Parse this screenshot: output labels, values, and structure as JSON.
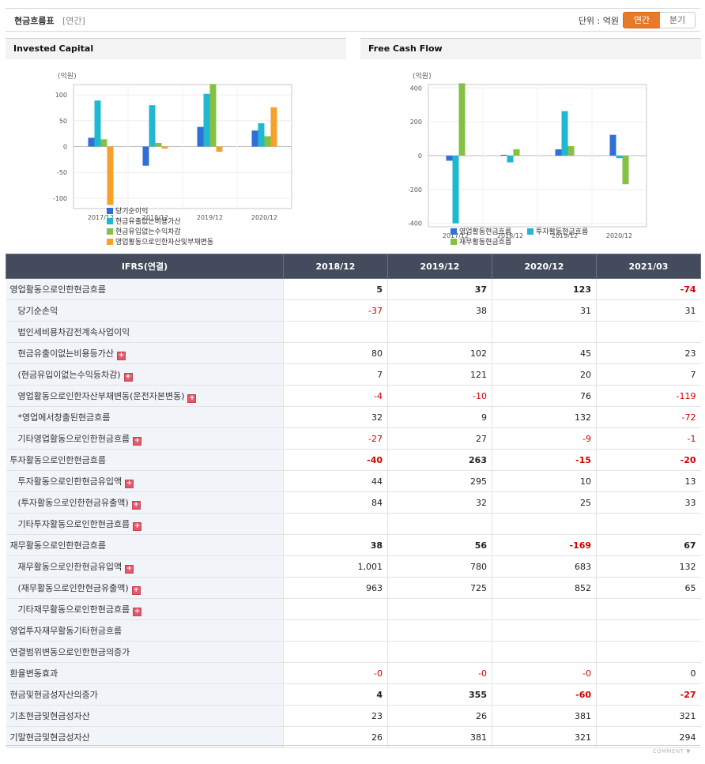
{
  "header": {
    "title": "현금흐름표",
    "period_tag": "[연간]",
    "unit_label": "단위 : 억원",
    "tab_annual": "연간",
    "tab_quarter": "분기"
  },
  "charts": {
    "invested_capital_title": "Invested Capital",
    "free_cash_flow_title": "Free Cash Flow"
  },
  "chart_data": [
    {
      "type": "bar",
      "title": "Invested Capital",
      "ylabel": "(억원)",
      "categories": [
        "2017/12",
        "2018/12",
        "2019/12",
        "2020/12"
      ],
      "ylim": [
        -120,
        120
      ],
      "yticks": [
        100,
        50,
        0,
        -50,
        -100
      ],
      "legend_position": "bottom",
      "series": [
        {
          "name": "당기순이익",
          "color": "#2f6fd6",
          "values": [
            17,
            -37,
            38,
            31
          ]
        },
        {
          "name": "현금유출없는비용가산",
          "color": "#1fb8d0",
          "values": [
            89,
            80,
            102,
            45
          ]
        },
        {
          "name": "현금유입없는수익차감",
          "color": "#84c143",
          "values": [
            14,
            7,
            121,
            20
          ]
        },
        {
          "name": "영업활동으로인한자산및부채변동",
          "color": "#f7a02a",
          "values": [
            -113,
            -4,
            -10,
            76
          ]
        }
      ]
    },
    {
      "type": "bar",
      "title": "Free Cash Flow",
      "ylabel": "(억원)",
      "categories": [
        "2017/12",
        "2018/12",
        "2019/12",
        "2020/12"
      ],
      "ylim": [
        -420,
        420
      ],
      "yticks": [
        400,
        200,
        0,
        -200,
        -400
      ],
      "legend_position": "bottom",
      "series": [
        {
          "name": "영업활동현금흐름",
          "color": "#2f6fd6",
          "values": [
            -30,
            5,
            37,
            123
          ]
        },
        {
          "name": "투자활동현금흐름",
          "color": "#1fb8d0",
          "values": [
            -400,
            -40,
            263,
            -15
          ]
        },
        {
          "name": "재무활동현금흐름",
          "color": "#84c143",
          "values": [
            427,
            38,
            56,
            -169
          ]
        }
      ]
    }
  ],
  "table": {
    "header": [
      "IFRS(연결)",
      "2018/12",
      "2019/12",
      "2020/12",
      "2021/03"
    ],
    "rows": [
      {
        "label": "영업활동으로인한현금흐름",
        "kind": "main",
        "plus": false,
        "values": [
          "5",
          "37",
          "123",
          "-74"
        ]
      },
      {
        "label": "당기순손익",
        "kind": "sub",
        "plus": false,
        "values": [
          "-37",
          "38",
          "31",
          "31"
        ]
      },
      {
        "label": "법인세비용차감전계속사업이익",
        "kind": "sub",
        "plus": false,
        "values": [
          "",
          "",
          "",
          ""
        ]
      },
      {
        "label": "현금유출이없는비용등가산",
        "kind": "sub",
        "plus": true,
        "values": [
          "80",
          "102",
          "45",
          "23"
        ]
      },
      {
        "label": "(현금유입이없는수익등차감)",
        "kind": "sub",
        "plus": true,
        "values": [
          "7",
          "121",
          "20",
          "7"
        ]
      },
      {
        "label": "영업활동으로인한자산부채변동(운전자본변동)",
        "kind": "sub",
        "plus": true,
        "values": [
          "-4",
          "-10",
          "76",
          "-119"
        ]
      },
      {
        "label": "*영업에서창출된현금흐름",
        "kind": "sub",
        "plus": false,
        "values": [
          "32",
          "9",
          "132",
          "-72"
        ]
      },
      {
        "label": "기타영업활동으로인한현금흐름",
        "kind": "sub",
        "plus": true,
        "values": [
          "-27",
          "27",
          "-9",
          "-1"
        ]
      },
      {
        "label": "투자활동으로인한현금흐름",
        "kind": "main",
        "plus": false,
        "values": [
          "-40",
          "263",
          "-15",
          "-20"
        ]
      },
      {
        "label": "투자활동으로인한현금유입액",
        "kind": "sub",
        "plus": true,
        "values": [
          "44",
          "295",
          "10",
          "13"
        ]
      },
      {
        "label": "(투자활동으로인한현금유출액)",
        "kind": "sub",
        "plus": true,
        "values": [
          "84",
          "32",
          "25",
          "33"
        ]
      },
      {
        "label": "기타투자활동으로인한현금흐름",
        "kind": "sub",
        "plus": true,
        "values": [
          "",
          "",
          "",
          ""
        ]
      },
      {
        "label": "재무활동으로인한현금흐름",
        "kind": "main",
        "plus": false,
        "values": [
          "38",
          "56",
          "-169",
          "67"
        ]
      },
      {
        "label": "재무활동으로인한현금유입액",
        "kind": "sub",
        "plus": true,
        "values": [
          "1,001",
          "780",
          "683",
          "132"
        ]
      },
      {
        "label": "(재무활동으로인한현금유출액)",
        "kind": "sub",
        "plus": true,
        "values": [
          "963",
          "725",
          "852",
          "65"
        ]
      },
      {
        "label": "기타재무활동으로인한현금흐름",
        "kind": "sub",
        "plus": true,
        "values": [
          "",
          "",
          "",
          ""
        ]
      },
      {
        "label": "영업투자재무활동기타현금흐름",
        "kind": "plain",
        "plus": false,
        "values": [
          "",
          "",
          "",
          ""
        ]
      },
      {
        "label": "연결범위변동으로인한현금의증가",
        "kind": "plain",
        "plus": false,
        "values": [
          "",
          "",
          "",
          ""
        ]
      },
      {
        "label": "환율변동효과",
        "kind": "plain",
        "plus": false,
        "values": [
          "-0",
          "-0",
          "-0",
          "0"
        ]
      },
      {
        "label": "현금및현금성자산의증가",
        "kind": "main",
        "plus": false,
        "values": [
          "4",
          "355",
          "-60",
          "-27"
        ]
      },
      {
        "label": "기초현금및현금성자산",
        "kind": "plain",
        "plus": false,
        "values": [
          "23",
          "26",
          "381",
          "321"
        ]
      },
      {
        "label": "기말현금및현금성자산",
        "kind": "plain",
        "plus": false,
        "values": [
          "26",
          "381",
          "321",
          "294"
        ]
      }
    ]
  },
  "footer": {
    "comment_label": "COMMENT ▼"
  },
  "icons": {
    "expand": "plus-icon"
  }
}
